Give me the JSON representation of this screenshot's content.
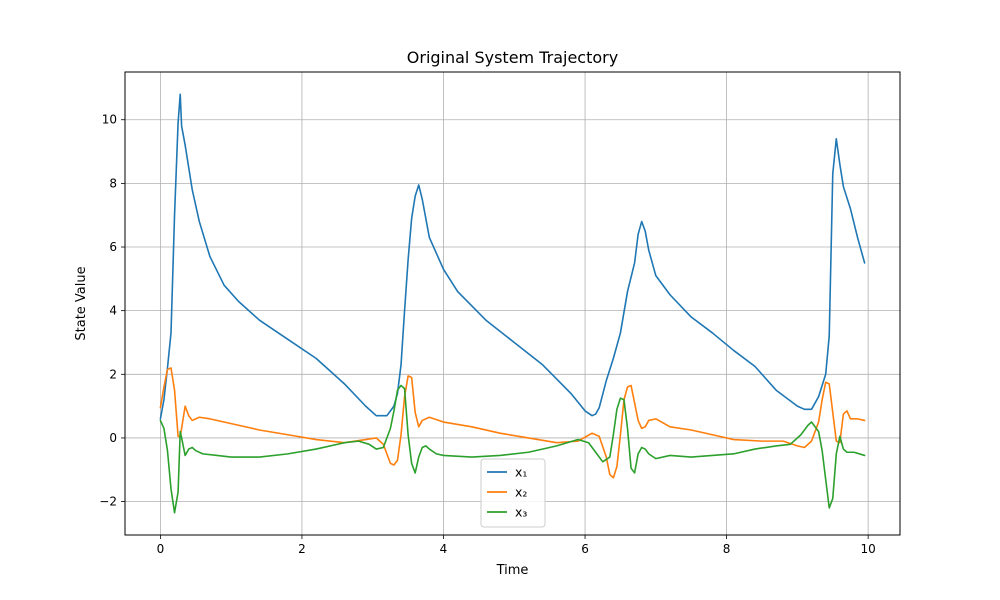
{
  "chart_data": {
    "type": "line",
    "title": "Original System Trajectory",
    "xlabel": "Time",
    "ylabel": "State Value",
    "xlim": [
      -0.5,
      10.45
    ],
    "ylim": [
      -3.05,
      11.5
    ],
    "xticks": [
      0,
      2,
      4,
      6,
      8,
      10
    ],
    "yticks": [
      -2,
      0,
      2,
      4,
      6,
      8,
      10
    ],
    "xtick_labels": [
      "0",
      "2",
      "4",
      "6",
      "8",
      "10"
    ],
    "ytick_labels": [
      "−2",
      "0",
      "2",
      "4",
      "6",
      "8",
      "10"
    ],
    "grid": true,
    "legend_position": "bottom-center",
    "series": [
      {
        "name": "x₁",
        "color": "#1f77b4",
        "x": [
          0,
          0.05,
          0.1,
          0.15,
          0.2,
          0.25,
          0.28,
          0.3,
          0.35,
          0.45,
          0.55,
          0.7,
          0.9,
          1.1,
          1.4,
          1.8,
          2.2,
          2.6,
          2.9,
          3.05,
          3.2,
          3.3,
          3.35,
          3.4,
          3.45,
          3.5,
          3.55,
          3.6,
          3.65,
          3.7,
          3.8,
          4.0,
          4.2,
          4.6,
          5.0,
          5.4,
          5.8,
          6.0,
          6.1,
          6.15,
          6.2,
          6.3,
          6.4,
          6.5,
          6.6,
          6.7,
          6.75,
          6.8,
          6.85,
          6.9,
          7.0,
          7.2,
          7.5,
          7.8,
          8.1,
          8.4,
          8.7,
          9.0,
          9.1,
          9.2,
          9.3,
          9.4,
          9.45,
          9.5,
          9.55,
          9.6,
          9.65,
          9.75,
          9.85,
          9.95
        ],
        "y": [
          0.6,
          1.2,
          2.2,
          3.3,
          7.0,
          9.9,
          10.8,
          9.8,
          9.2,
          7.8,
          6.8,
          5.7,
          4.8,
          4.3,
          3.7,
          3.1,
          2.5,
          1.7,
          1.0,
          0.7,
          0.7,
          1.0,
          1.4,
          2.3,
          4.0,
          5.6,
          6.9,
          7.6,
          7.95,
          7.5,
          6.3,
          5.3,
          4.6,
          3.7,
          3.0,
          2.3,
          1.4,
          0.85,
          0.7,
          0.75,
          0.95,
          1.8,
          2.5,
          3.3,
          4.6,
          5.5,
          6.4,
          6.8,
          6.5,
          5.9,
          5.1,
          4.5,
          3.8,
          3.3,
          2.75,
          2.25,
          1.5,
          1.0,
          0.9,
          0.9,
          1.3,
          2.0,
          3.2,
          8.3,
          9.4,
          8.6,
          7.9,
          7.2,
          6.3,
          5.5
        ]
      },
      {
        "name": "x₂",
        "color": "#ff7f0e",
        "x": [
          0,
          0.05,
          0.1,
          0.15,
          0.2,
          0.25,
          0.28,
          0.3,
          0.35,
          0.4,
          0.45,
          0.55,
          0.7,
          1.0,
          1.4,
          1.8,
          2.2,
          2.6,
          2.9,
          3.05,
          3.15,
          3.25,
          3.3,
          3.35,
          3.4,
          3.45,
          3.5,
          3.55,
          3.6,
          3.65,
          3.7,
          3.8,
          4.0,
          4.4,
          4.8,
          5.2,
          5.6,
          5.9,
          6.1,
          6.2,
          6.3,
          6.35,
          6.4,
          6.45,
          6.5,
          6.55,
          6.6,
          6.65,
          6.7,
          6.75,
          6.8,
          6.85,
          6.9,
          7.0,
          7.2,
          7.5,
          7.8,
          8.1,
          8.5,
          8.8,
          9.0,
          9.1,
          9.2,
          9.3,
          9.35,
          9.4,
          9.45,
          9.5,
          9.55,
          9.6,
          9.65,
          9.7,
          9.75,
          9.85,
          9.95
        ],
        "y": [
          0.95,
          1.6,
          2.15,
          2.2,
          1.5,
          0.05,
          0.05,
          0.3,
          1.0,
          0.7,
          0.55,
          0.65,
          0.6,
          0.45,
          0.25,
          0.1,
          -0.05,
          -0.15,
          -0.05,
          0.0,
          -0.2,
          -0.8,
          -0.85,
          -0.7,
          0.1,
          1.3,
          1.95,
          1.9,
          0.8,
          0.35,
          0.55,
          0.65,
          0.5,
          0.35,
          0.15,
          0.0,
          -0.15,
          -0.1,
          0.15,
          0.05,
          -0.6,
          -1.15,
          -1.25,
          -0.9,
          0.1,
          1.2,
          1.6,
          1.65,
          1.1,
          0.55,
          0.3,
          0.35,
          0.55,
          0.6,
          0.35,
          0.25,
          0.1,
          -0.05,
          -0.1,
          -0.1,
          -0.25,
          -0.3,
          -0.1,
          0.5,
          1.2,
          1.75,
          1.7,
          0.8,
          -0.1,
          -0.15,
          0.75,
          0.85,
          0.6,
          0.6,
          0.55
        ]
      },
      {
        "name": "x₃",
        "color": "#2ca02c",
        "x": [
          0,
          0.05,
          0.1,
          0.15,
          0.2,
          0.25,
          0.28,
          0.3,
          0.35,
          0.4,
          0.45,
          0.5,
          0.6,
          0.8,
          1.0,
          1.4,
          1.8,
          2.2,
          2.6,
          2.8,
          2.95,
          3.05,
          3.15,
          3.25,
          3.3,
          3.35,
          3.4,
          3.45,
          3.5,
          3.55,
          3.6,
          3.65,
          3.7,
          3.75,
          3.8,
          3.9,
          4.0,
          4.4,
          4.8,
          5.2,
          5.6,
          5.9,
          6.05,
          6.15,
          6.25,
          6.35,
          6.4,
          6.45,
          6.5,
          6.55,
          6.6,
          6.65,
          6.7,
          6.75,
          6.8,
          6.85,
          6.9,
          7.0,
          7.2,
          7.5,
          7.8,
          8.1,
          8.4,
          8.7,
          8.9,
          9.05,
          9.15,
          9.2,
          9.3,
          9.35,
          9.4,
          9.45,
          9.5,
          9.55,
          9.6,
          9.65,
          9.7,
          9.8,
          9.95
        ],
        "y": [
          0.55,
          0.3,
          -0.4,
          -1.6,
          -2.35,
          -1.7,
          0.2,
          0.0,
          -0.55,
          -0.35,
          -0.3,
          -0.4,
          -0.5,
          -0.55,
          -0.6,
          -0.6,
          -0.5,
          -0.35,
          -0.15,
          -0.1,
          -0.2,
          -0.35,
          -0.3,
          0.3,
          0.85,
          1.5,
          1.65,
          1.55,
          0.1,
          -0.8,
          -1.1,
          -0.6,
          -0.3,
          -0.25,
          -0.35,
          -0.5,
          -0.55,
          -0.6,
          -0.55,
          -0.45,
          -0.25,
          -0.05,
          -0.15,
          -0.45,
          -0.75,
          -0.6,
          0.1,
          0.9,
          1.25,
          1.2,
          0.3,
          -0.95,
          -1.1,
          -0.5,
          -0.3,
          -0.35,
          -0.5,
          -0.65,
          -0.55,
          -0.6,
          -0.55,
          -0.5,
          -0.35,
          -0.25,
          -0.2,
          0.1,
          0.4,
          0.5,
          0.2,
          -0.4,
          -1.3,
          -2.2,
          -1.9,
          -0.5,
          0.05,
          -0.35,
          -0.45,
          -0.45,
          -0.55
        ]
      }
    ]
  }
}
